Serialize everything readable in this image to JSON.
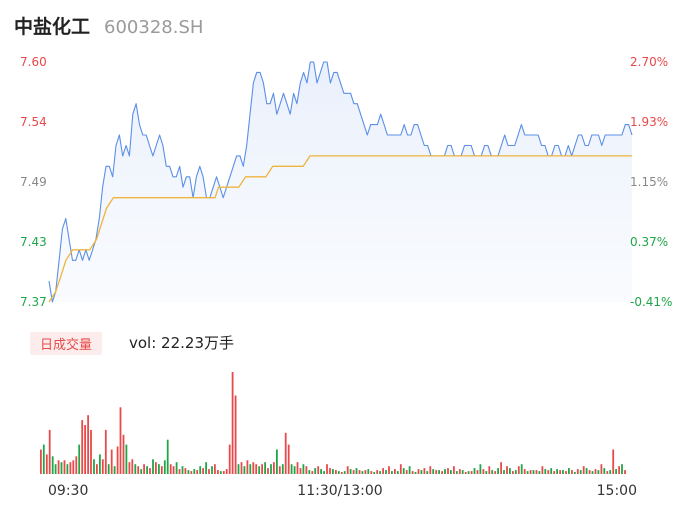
{
  "header": {
    "name": "中盐化工",
    "code": "600328.SH"
  },
  "volume_panel": {
    "tag": "日成交量",
    "text": "vol: 22.23万手"
  },
  "colors": {
    "up": "#e84a4a",
    "down": "#1fa64a",
    "flat": "#888888",
    "price_line": "#5b8fe8",
    "avg_line": "#f0b43c"
  },
  "chart_data": [
    {
      "type": "line",
      "y_ticks_left": [
        "7.60",
        "7.54",
        "7.49",
        "7.43",
        "7.37"
      ],
      "y_ticks_right": [
        "2.70%",
        "1.93%",
        "1.15%",
        "0.37%",
        "-0.41%"
      ],
      "ylim": [
        7.37,
        7.6
      ],
      "x_ticks": [
        "09:30",
        "11:30/13:00",
        "15:00"
      ],
      "series": [
        {
          "values": [
            7.39,
            7.37,
            7.38,
            7.41,
            7.44,
            7.45,
            7.43,
            7.41,
            7.41,
            7.42,
            7.41,
            7.42,
            7.41,
            7.42,
            7.43,
            7.45,
            7.48,
            7.5,
            7.5,
            7.49,
            7.52,
            7.53,
            7.51,
            7.52,
            7.51,
            7.55,
            7.56,
            7.54,
            7.53,
            7.53,
            7.52,
            7.51,
            7.52,
            7.53,
            7.52,
            7.5,
            7.5,
            7.49,
            7.49,
            7.5,
            7.48,
            7.49,
            7.49,
            7.47,
            7.49,
            7.5,
            7.49,
            7.47,
            7.47,
            7.48,
            7.49,
            7.48,
            7.47,
            7.48,
            7.49,
            7.5,
            7.51,
            7.51,
            7.5,
            7.52,
            7.55,
            7.58,
            7.59,
            7.59,
            7.58,
            7.56,
            7.56,
            7.57,
            7.55,
            7.56,
            7.57,
            7.56,
            7.55,
            7.57,
            7.56,
            7.58,
            7.59,
            7.58,
            7.6,
            7.6,
            7.58,
            7.59,
            7.6,
            7.6,
            7.58,
            7.59,
            7.59,
            7.58,
            7.57,
            7.57,
            7.57,
            7.56,
            7.56,
            7.55,
            7.54,
            7.53,
            7.54,
            7.54,
            7.54,
            7.55,
            7.54,
            7.53,
            7.53,
            7.53,
            7.53,
            7.53,
            7.54,
            7.53,
            7.53,
            7.54,
            7.54,
            7.53,
            7.52,
            7.52,
            7.51,
            7.51,
            7.51,
            7.51,
            7.51,
            7.52,
            7.52,
            7.51,
            7.51,
            7.51,
            7.52,
            7.52,
            7.52,
            7.51,
            7.51,
            7.51,
            7.52,
            7.52,
            7.51,
            7.51,
            7.51,
            7.52,
            7.53,
            7.52,
            7.52,
            7.52,
            7.53,
            7.54,
            7.53,
            7.53,
            7.53,
            7.53,
            7.53,
            7.52,
            7.52,
            7.51,
            7.51,
            7.52,
            7.52,
            7.51,
            7.51,
            7.52,
            7.51,
            7.52,
            7.53,
            7.53,
            7.52,
            7.52,
            7.53,
            7.53,
            7.53,
            7.52,
            7.53,
            7.53,
            7.53,
            7.53,
            7.53,
            7.53,
            7.54,
            7.54,
            7.53
          ],
          "color": "#5b8fe8"
        },
        {
          "values": [
            7.37,
            7.375,
            7.38,
            7.39,
            7.4,
            7.41,
            7.415,
            7.42,
            7.42,
            7.42,
            7.42,
            7.42,
            7.42,
            7.425,
            7.43,
            7.44,
            7.45,
            7.46,
            7.465,
            7.47,
            7.47,
            7.47,
            7.47,
            7.47,
            7.47,
            7.47,
            7.47,
            7.47,
            7.47,
            7.47,
            7.47,
            7.47,
            7.47,
            7.47,
            7.47,
            7.47,
            7.47,
            7.47,
            7.47,
            7.47,
            7.47,
            7.47,
            7.47,
            7.47,
            7.47,
            7.47,
            7.47,
            7.47,
            7.47,
            7.47,
            7.48,
            7.48,
            7.48,
            7.48,
            7.48,
            7.48,
            7.48,
            7.485,
            7.49,
            7.49,
            7.49,
            7.49,
            7.49,
            7.49,
            7.49,
            7.495,
            7.5,
            7.5,
            7.5,
            7.5,
            7.5,
            7.5,
            7.5,
            7.5,
            7.5,
            7.5,
            7.505,
            7.51,
            7.51,
            7.51,
            7.51,
            7.51,
            7.51,
            7.51,
            7.51,
            7.51,
            7.51,
            7.51,
            7.51,
            7.51,
            7.51,
            7.51,
            7.51,
            7.51,
            7.51,
            7.51,
            7.51,
            7.51,
            7.51,
            7.51,
            7.51,
            7.51,
            7.51,
            7.51,
            7.51,
            7.51,
            7.51,
            7.51,
            7.51,
            7.51,
            7.51,
            7.51,
            7.51,
            7.51,
            7.51,
            7.51,
            7.51,
            7.51,
            7.51,
            7.51,
            7.51,
            7.51,
            7.51,
            7.51,
            7.51,
            7.51,
            7.51,
            7.51,
            7.51,
            7.51,
            7.51,
            7.51,
            7.51,
            7.51,
            7.51,
            7.51,
            7.51,
            7.51,
            7.51,
            7.51,
            7.51,
            7.51,
            7.51,
            7.51,
            7.51,
            7.51,
            7.51,
            7.51,
            7.51,
            7.51,
            7.51,
            7.51,
            7.51,
            7.51,
            7.51,
            7.51,
            7.51,
            7.51,
            7.51,
            7.51,
            7.51,
            7.51,
            7.51,
            7.51,
            7.51,
            7.51,
            7.51,
            7.51,
            7.51,
            7.51,
            7.51,
            7.51,
            7.51
          ],
          "color": "#f0b43c"
        }
      ]
    },
    {
      "type": "bar",
      "ylim": [
        0,
        104
      ],
      "values": [
        25,
        30,
        20,
        45,
        18,
        10,
        14,
        12,
        14,
        10,
        12,
        14,
        18,
        30,
        55,
        50,
        60,
        45,
        15,
        10,
        20,
        15,
        45,
        10,
        25,
        8,
        28,
        68,
        40,
        30,
        12,
        15,
        10,
        8,
        5,
        10,
        8,
        6,
        15,
        12,
        10,
        8,
        14,
        35,
        10,
        8,
        12,
        5,
        8,
        6,
        4,
        3,
        5,
        4,
        8,
        6,
        12,
        5,
        8,
        10,
        4,
        3,
        3,
        5,
        30,
        104,
        80,
        10,
        12,
        8,
        14,
        10,
        12,
        10,
        8,
        10,
        12,
        6,
        10,
        12,
        25,
        8,
        10,
        42,
        30,
        10,
        8,
        12,
        6,
        10,
        8,
        4,
        3,
        6,
        8,
        5,
        3,
        10,
        6,
        5,
        4,
        3,
        2,
        3,
        8,
        5,
        4,
        6,
        4,
        3,
        4,
        5,
        3,
        2,
        4,
        3,
        6,
        4,
        8,
        3,
        5,
        3,
        10,
        6,
        4,
        8,
        3,
        2,
        5,
        4,
        6,
        3,
        8,
        5,
        4,
        4,
        3,
        5,
        6,
        4,
        8,
        3,
        5,
        4,
        2,
        3,
        3,
        6,
        4,
        10,
        5,
        3,
        8,
        4,
        3,
        6,
        12,
        4,
        8,
        6,
        3,
        4,
        8,
        10,
        5,
        3,
        4,
        4,
        4,
        3,
        8,
        5,
        4,
        6,
        3,
        5,
        4,
        4,
        3,
        6,
        4,
        2,
        5,
        4,
        8,
        6,
        4,
        3,
        5,
        4,
        10,
        6,
        3,
        4,
        25,
        5,
        8,
        10,
        4
      ],
      "colors": [
        "up",
        "down",
        "up",
        "up",
        "down",
        "down",
        "up",
        "down",
        "up",
        "down",
        "up",
        "up",
        "up",
        "down",
        "up",
        "up",
        "up",
        "up",
        "down",
        "up",
        "down",
        "up",
        "up",
        "down",
        "up",
        "down",
        "up",
        "up",
        "up",
        "down",
        "up",
        "up",
        "down",
        "up",
        "down",
        "up",
        "down",
        "up",
        "down",
        "up",
        "down",
        "up",
        "down",
        "down",
        "up",
        "up",
        "down",
        "up",
        "down",
        "up",
        "down",
        "up",
        "down",
        "up",
        "down",
        "up",
        "down",
        "up",
        "down",
        "up",
        "up",
        "down",
        "up",
        "up",
        "up",
        "up",
        "up",
        "down",
        "up",
        "down",
        "up",
        "down",
        "up",
        "up",
        "down",
        "up",
        "down",
        "up",
        "down",
        "up",
        "down",
        "up",
        "down",
        "up",
        "up",
        "down",
        "down",
        "up",
        "up",
        "down",
        "up",
        "down",
        "up",
        "down",
        "up",
        "down",
        "down",
        "up",
        "up",
        "down",
        "up",
        "down",
        "up",
        "down",
        "up",
        "down",
        "up",
        "down",
        "up",
        "down",
        "up",
        "down",
        "up",
        "down",
        "up",
        "down",
        "up",
        "down",
        "up",
        "down",
        "up",
        "down",
        "up",
        "down",
        "up",
        "down",
        "up",
        "down",
        "up",
        "down",
        "up",
        "down",
        "up",
        "down",
        "up",
        "down",
        "up",
        "down",
        "up",
        "down",
        "up",
        "down",
        "up",
        "down",
        "up",
        "down",
        "up",
        "down",
        "up",
        "down",
        "up",
        "down",
        "up",
        "down",
        "up",
        "down",
        "up",
        "down",
        "up",
        "down",
        "up",
        "down",
        "up",
        "down",
        "up",
        "down",
        "up",
        "down",
        "up",
        "down",
        "up",
        "down",
        "up",
        "down",
        "up",
        "down",
        "up",
        "down",
        "up",
        "down",
        "up",
        "down",
        "up",
        "down",
        "up",
        "down",
        "up",
        "down",
        "up",
        "down",
        "up",
        "down",
        "up",
        "down",
        "up",
        "down",
        "up",
        "down",
        "up",
        "up",
        "up",
        "up",
        "up",
        "down",
        "flat"
      ]
    }
  ]
}
